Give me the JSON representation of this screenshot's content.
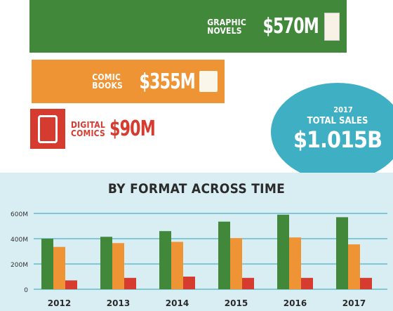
{
  "top_bars": [
    {
      "label_line1": "GRAPHIC",
      "label_line2": "NOVELS",
      "amount": "$570M",
      "value_musd": 570,
      "color": "#41883a",
      "icon": "book-spines-icon"
    },
    {
      "label_line1": "COMIC",
      "label_line2": "BOOKS",
      "amount": "$355M",
      "value_musd": 355,
      "color": "#ee9434",
      "icon": "comic-book-icon"
    },
    {
      "label_line1": "DIGITAL",
      "label_line2": "COMICS",
      "amount": "$90M",
      "value_musd": 90,
      "color": "#d63b30",
      "icon": "tablet-icon"
    }
  ],
  "total": {
    "year": "2017",
    "label": "TOTAL SALES",
    "amount": "$1.015B",
    "color": "#3fb0c4"
  },
  "chart_data": {
    "type": "bar",
    "title": "BY FORMAT ACROSS TIME",
    "categories": [
      "2012",
      "2013",
      "2014",
      "2015",
      "2016",
      "2017"
    ],
    "series": [
      {
        "name": "Graphic Novels",
        "color": "#41883a",
        "values": [
          400,
          415,
          460,
          535,
          590,
          570
        ]
      },
      {
        "name": "Comic Books",
        "color": "#ee9434",
        "values": [
          335,
          365,
          375,
          405,
          410,
          355
        ]
      },
      {
        "name": "Digital Comics",
        "color": "#d63b30",
        "values": [
          70,
          90,
          100,
          90,
          90,
          90
        ]
      }
    ],
    "ylim": [
      0,
      600
    ],
    "yticks": [
      0,
      200,
      400,
      600
    ],
    "ytick_labels": [
      "0",
      "200M",
      "400M",
      "600M"
    ],
    "grid": true
  }
}
